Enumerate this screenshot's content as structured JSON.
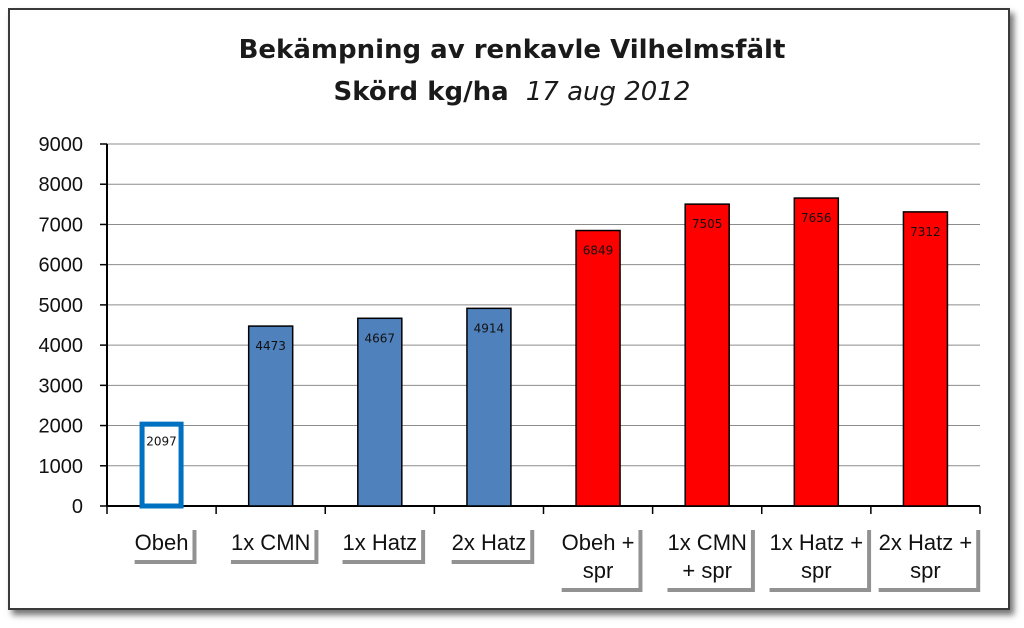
{
  "chart_data": {
    "type": "bar",
    "title_line1": "Bekämpning av renkavle Vilhelmsfält",
    "title_line2_main": "Skörd kg/ha",
    "title_line2_date": "17 aug 2012",
    "categories": [
      [
        "Obeh"
      ],
      [
        "1x CMN"
      ],
      [
        "1x Hatz"
      ],
      [
        "2x Hatz"
      ],
      [
        "Obeh +",
        "spr"
      ],
      [
        "1x CMN",
        "+ spr"
      ],
      [
        "1x Hatz +",
        "spr"
      ],
      [
        "2x Hatz +",
        "spr"
      ]
    ],
    "values": [
      2097,
      4473,
      4667,
      4914,
      6849,
      7505,
      7656,
      7312
    ],
    "value_labels": [
      "2097",
      "4473",
      "4667",
      "4914",
      "6849",
      "7505",
      "7656",
      "7312"
    ],
    "bar_styles": [
      "outline",
      "fill",
      "fill",
      "fill",
      "fill",
      "fill",
      "fill",
      "fill"
    ],
    "colors": {
      "blue_fill": "#4f81bd",
      "outline_blue": "#0070c0",
      "red_fill": "#ff0000",
      "gridline": "#8c8c8c"
    },
    "bar_colors": [
      "#0070c0",
      "#4f81bd",
      "#4f81bd",
      "#4f81bd",
      "#ff0000",
      "#ff0000",
      "#ff0000",
      "#ff0000"
    ],
    "ylim": [
      0,
      9000
    ],
    "yticks": [
      0,
      1000,
      2000,
      3000,
      4000,
      5000,
      6000,
      7000,
      8000,
      9000
    ],
    "grid": true,
    "xlabel": "",
    "ylabel": ""
  }
}
